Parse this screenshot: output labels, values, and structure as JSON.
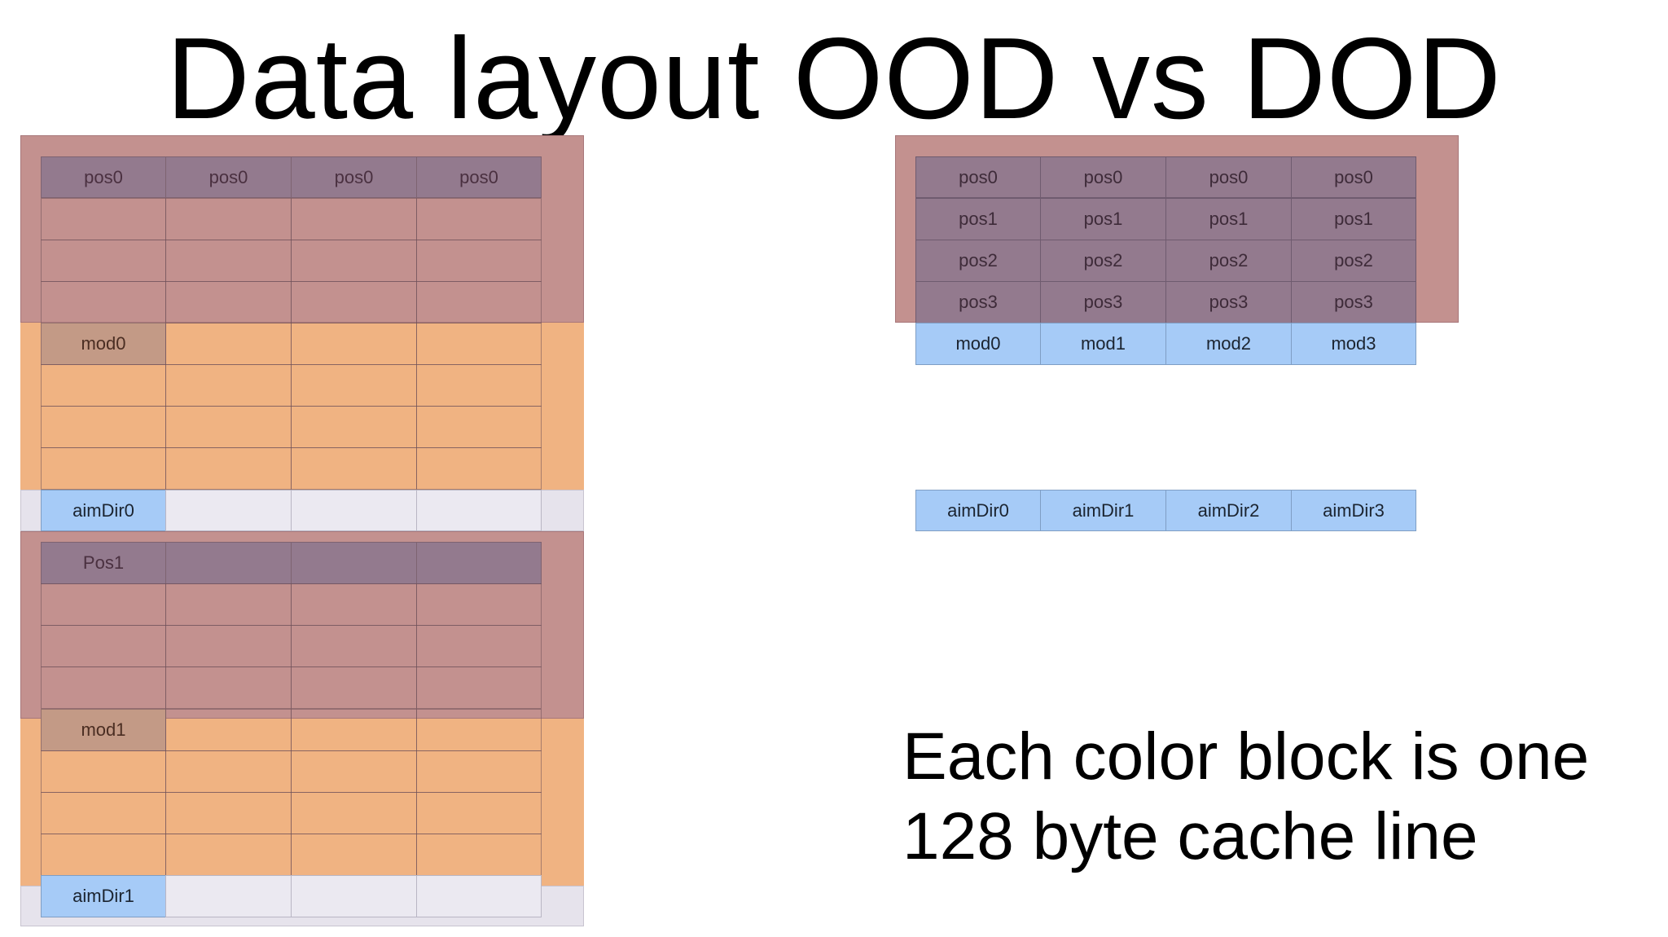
{
  "title": "Data layout OOD vs DOD",
  "colors": {
    "cache_line_pos": "#c3918f",
    "cache_line_mod": "#f0b382",
    "cache_line_aim": "#e6e3ec",
    "pos_cell": "#937a8e",
    "blue_cell": "#a6cbf7"
  },
  "ood": {
    "block0": {
      "pos": [
        "pos0",
        "pos0",
        "pos0",
        "pos0"
      ],
      "mod": "mod0",
      "aim": "aimDir0"
    },
    "block1": {
      "pos": [
        "Pos1",
        "",
        "",
        ""
      ],
      "mod": "mod1",
      "aim": "aimDir1"
    }
  },
  "dod": {
    "pos_rows": [
      [
        "pos0",
        "pos0",
        "pos0",
        "pos0"
      ],
      [
        "pos1",
        "pos1",
        "pos1",
        "pos1"
      ],
      [
        "pos2",
        "pos2",
        "pos2",
        "pos2"
      ],
      [
        "pos3",
        "pos3",
        "pos3",
        "pos3"
      ]
    ],
    "mods": [
      "mod0",
      "mod1",
      "mod2",
      "mod3"
    ],
    "aims": [
      "aimDir0",
      "aimDir1",
      "aimDir2",
      "aimDir3"
    ]
  },
  "note": "Each color block is one 128 byte cache line"
}
